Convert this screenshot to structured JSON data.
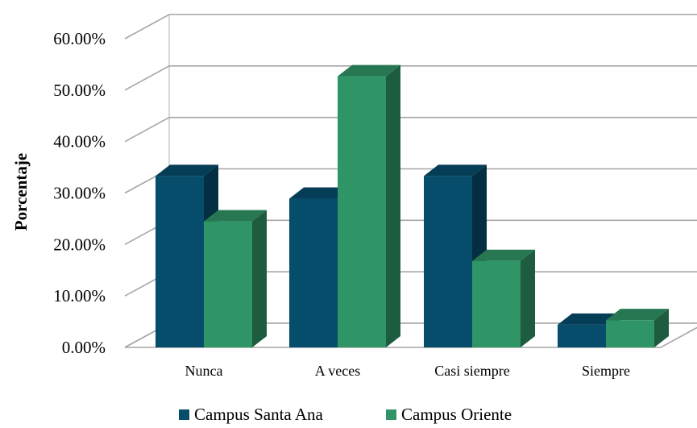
{
  "chart_data": {
    "type": "bar",
    "title": "",
    "xlabel": "",
    "ylabel": "Porcentaje",
    "ylim": [
      0,
      60
    ],
    "yticks": [
      "0.00%",
      "10.00%",
      "20.00%",
      "30.00%",
      "40.00%",
      "50.00%",
      "60.00%"
    ],
    "categories": [
      "Nunca",
      "A veces",
      "Casi siempre",
      "Siempre"
    ],
    "series": [
      {
        "name": "Campus Santa Ana",
        "values": [
          33.3,
          28.9,
          33.3,
          4.4
        ],
        "color": "#064c6b"
      },
      {
        "name": "Campus Oriente",
        "values": [
          24.5,
          52.7,
          16.8,
          5.3
        ],
        "color": "#2f9566"
      }
    ],
    "legend_position": "bottom",
    "grid": true,
    "style": "3d-clustered-column"
  }
}
